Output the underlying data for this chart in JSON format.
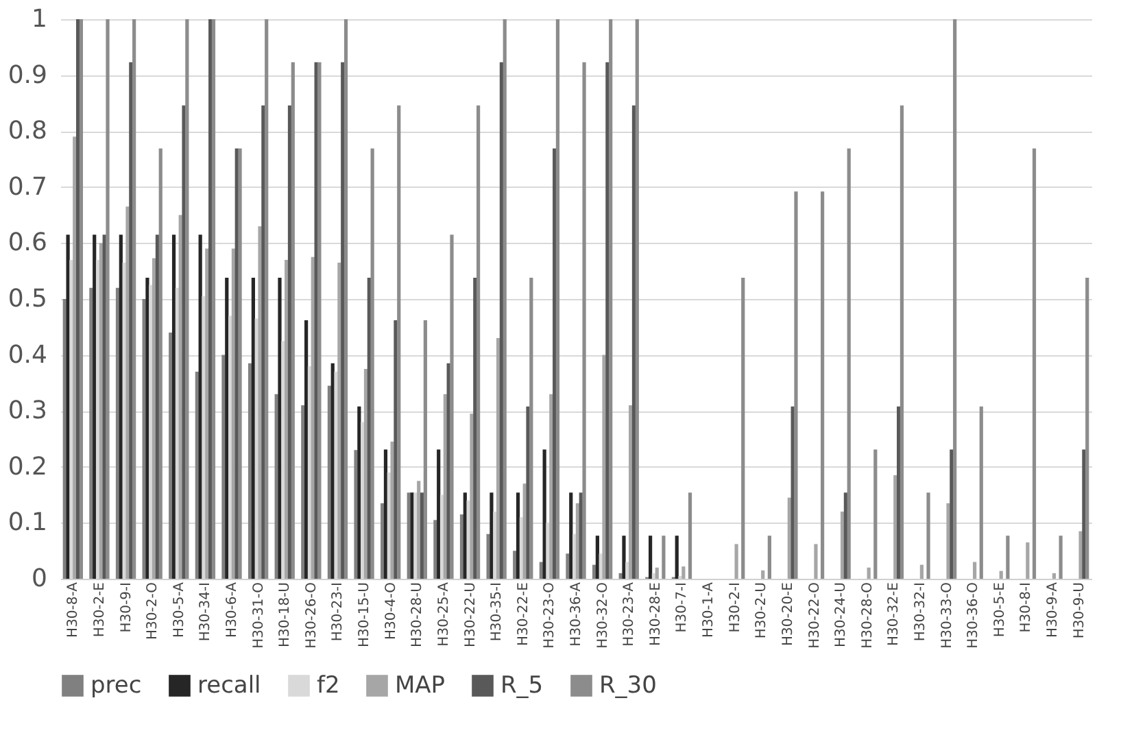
{
  "chart_data": {
    "type": "bar",
    "categories": [
      "H30-8-A",
      "H30-2-E",
      "H30-9-I",
      "H30-2-O",
      "H30-5-A",
      "H30-34-I",
      "H30-6-A",
      "H30-31-O",
      "H30-18-U",
      "H30-26-O",
      "H30-23-I",
      "H30-15-U",
      "H30-4-O",
      "H30-28-U",
      "H30-25-A",
      "H30-22-U",
      "H30-35-I",
      "H30-22-E",
      "H30-23-O",
      "H30-36-A",
      "H30-32-O",
      "H30-23-A",
      "H30-28-E",
      "H30-7-I",
      "H30-1-A",
      "H30-2-I",
      "H30-2-U",
      "H30-20-E",
      "H30-22-O",
      "H30-24-U",
      "H30-28-O",
      "H30-32-E",
      "H30-32-I",
      "H30-33-O",
      "H30-36-O",
      "H30-5-E",
      "H30-8-I",
      "H30-9-A",
      "H30-9-U"
    ],
    "series": [
      {
        "name": "prec",
        "color": "#808080",
        "values": [
          0.5,
          0.52,
          0.52,
          0.5,
          0.44,
          0.37,
          0.4,
          0.385,
          0.33,
          0.31,
          0.345,
          0.23,
          0.135,
          0.154,
          0.105,
          0.115,
          0.08,
          0.05,
          0.03,
          0.045,
          0.025,
          0.01,
          0.003,
          0.003,
          0,
          0,
          0,
          0,
          0,
          0,
          0,
          0,
          0,
          0,
          0,
          0,
          0,
          0,
          0
        ]
      },
      {
        "name": "recall",
        "color": "#262626",
        "values": [
          0.615,
          0.615,
          0.615,
          0.538,
          0.615,
          0.615,
          0.538,
          0.538,
          0.538,
          0.462,
          0.385,
          0.308,
          0.231,
          0.154,
          0.231,
          0.154,
          0.154,
          0.154,
          0.231,
          0.154,
          0.077,
          0.077,
          0.077,
          0.077,
          0,
          0,
          0,
          0,
          0,
          0,
          0,
          0,
          0,
          0,
          0,
          0,
          0,
          0,
          0
        ]
      },
      {
        "name": "f2",
        "color": "#d9d9d9",
        "values": [
          0.57,
          0.57,
          0.565,
          0.525,
          0.52,
          0.505,
          0.47,
          0.465,
          0.425,
          0.38,
          0.37,
          0.28,
          0.19,
          0.154,
          0.15,
          0.14,
          0.12,
          0.11,
          0.1,
          0.08,
          0.045,
          0.03,
          0.01,
          0.005,
          0,
          0,
          0,
          0,
          0,
          0,
          0,
          0,
          0,
          0,
          0,
          0,
          0,
          0,
          0
        ]
      },
      {
        "name": "MAP",
        "color": "#a6a6a6",
        "values": [
          0.79,
          0.6,
          0.665,
          0.573,
          0.65,
          0.59,
          0.59,
          0.63,
          0.57,
          0.575,
          0.565,
          0.375,
          0.245,
          0.175,
          0.33,
          0.295,
          0.43,
          0.17,
          0.33,
          0.135,
          0.4,
          0.31,
          0.02,
          0.022,
          0,
          0.062,
          0.015,
          0.145,
          0.062,
          0.12,
          0.02,
          0.185,
          0.025,
          0.135,
          0.03,
          0.014,
          0.065,
          0.01,
          0.085
        ]
      },
      {
        "name": "R_5",
        "color": "#595959",
        "values": [
          1,
          0.615,
          0.923,
          0.615,
          0.846,
          1,
          0.769,
          0.846,
          0.846,
          0.923,
          0.923,
          0.538,
          0.462,
          0.154,
          0.385,
          0.538,
          0.923,
          0.308,
          0.769,
          0.154,
          0.923,
          0.846,
          0,
          0,
          0,
          0,
          0,
          0.308,
          0,
          0.154,
          0,
          0.308,
          0,
          0.231,
          0,
          0,
          0,
          0,
          0.231
        ]
      },
      {
        "name": "R_30",
        "color": "#8c8c8c",
        "values": [
          1,
          1,
          1,
          0.769,
          1,
          1,
          0.769,
          1,
          0.923,
          0.923,
          1,
          0.769,
          0.846,
          0.462,
          0.615,
          0.846,
          1,
          0.538,
          1,
          0.923,
          1,
          1,
          0.077,
          0.154,
          0,
          0.538,
          0.077,
          0.692,
          0.692,
          0.769,
          0.231,
          0.846,
          0.154,
          1,
          0.308,
          0.077,
          0.769,
          0.077,
          0.538
        ]
      }
    ],
    "ylim": [
      0,
      1
    ],
    "yticks": [
      0,
      0.1,
      0.2,
      0.3,
      0.4,
      0.5,
      0.6,
      0.7,
      0.8,
      0.9,
      1
    ],
    "grid": "y",
    "legend": "bottom"
  }
}
